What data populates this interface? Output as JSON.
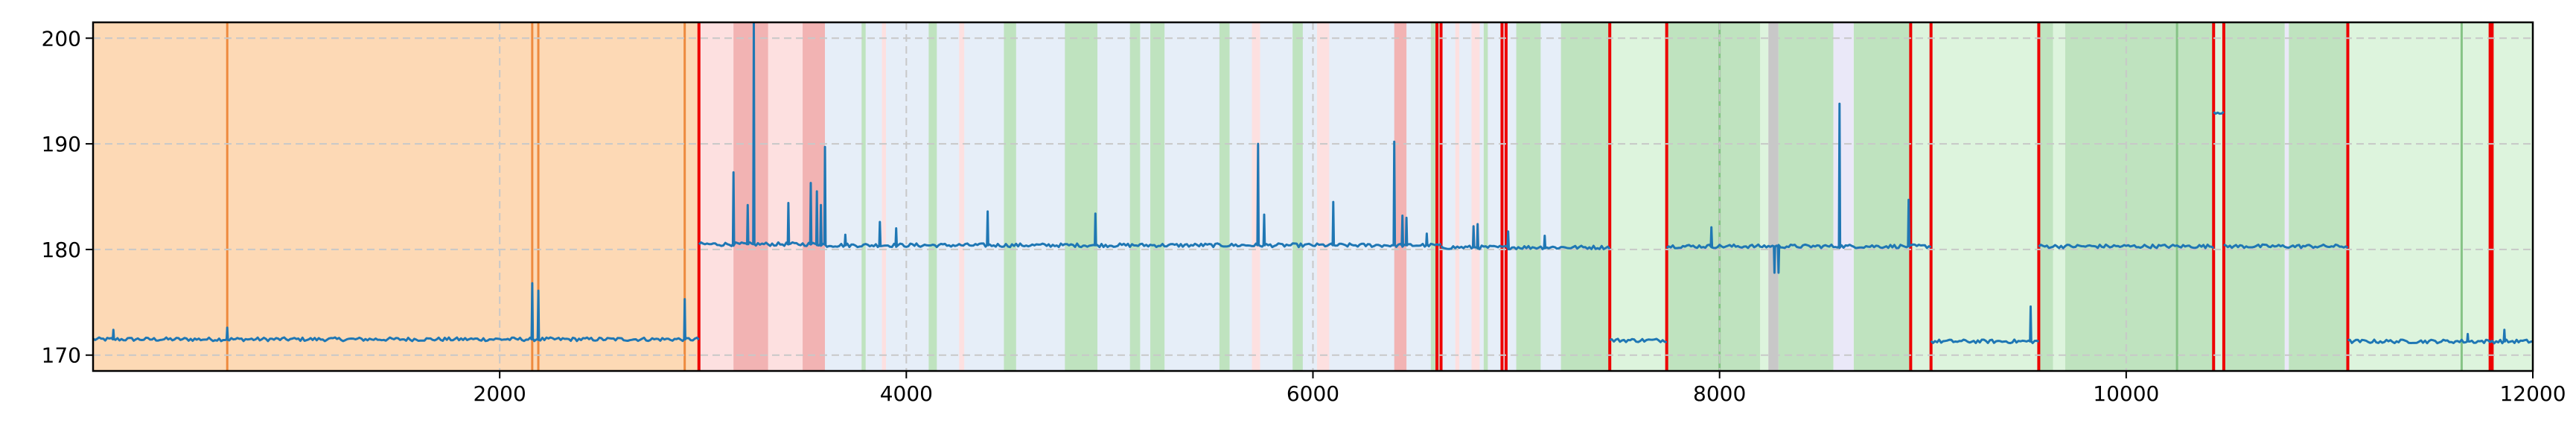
{
  "chart_data": {
    "type": "line",
    "title": "",
    "xlabel": "",
    "ylabel": "",
    "xlim": [
      0,
      12000
    ],
    "ylim": [
      168.5,
      201.5
    ],
    "grid": true,
    "legend": "none",
    "x_ticks": [
      {
        "value": 2000,
        "label": "2000"
      },
      {
        "value": 4000,
        "label": "4000"
      },
      {
        "value": 6000,
        "label": "6000"
      },
      {
        "value": 8000,
        "label": "8000"
      },
      {
        "value": 10000,
        "label": "10000"
      },
      {
        "value": 12000,
        "label": "12000"
      }
    ],
    "y_ticks": [
      {
        "value": 170,
        "label": "170"
      },
      {
        "value": 180,
        "label": "180"
      },
      {
        "value": 190,
        "label": "190"
      },
      {
        "value": 200,
        "label": "200"
      }
    ],
    "colors": {
      "line": "#1f77b4",
      "background_span": "#fdd9b5",
      "orange_marker": "#ee8a3e",
      "red_span": "#f2b3b3",
      "pink_span": "#fde0e0",
      "blue_span": "#e6eef8",
      "green_span": "#bfe3bf",
      "lightgreen_span": "#ddf4dd",
      "lavender_span": "#eae8f8",
      "gray_span": "#c8c8c8",
      "changepoint": "#ee0000",
      "green_marker": "#86c386",
      "grid": "#c8c8c8"
    },
    "spans": [
      {
        "x0": 0,
        "x1": 2980,
        "color": "background_span"
      },
      {
        "x0": 2980,
        "x1": 3600,
        "color": "pink_span"
      },
      {
        "x0": 3150,
        "x1": 3320,
        "color": "red_span"
      },
      {
        "x0": 3490,
        "x1": 3600,
        "color": "red_span"
      },
      {
        "x0": 3600,
        "x1": 7460,
        "color": "blue_span"
      },
      {
        "x0": 3780,
        "x1": 3800,
        "color": "green_span"
      },
      {
        "x0": 3880,
        "x1": 3900,
        "color": "pink_span"
      },
      {
        "x0": 4110,
        "x1": 4150,
        "color": "green_span"
      },
      {
        "x0": 4260,
        "x1": 4285,
        "color": "pink_span"
      },
      {
        "x0": 4480,
        "x1": 4540,
        "color": "green_span"
      },
      {
        "x0": 4780,
        "x1": 4940,
        "color": "green_span"
      },
      {
        "x0": 5100,
        "x1": 5150,
        "color": "green_span"
      },
      {
        "x0": 5200,
        "x1": 5270,
        "color": "green_span"
      },
      {
        "x0": 5540,
        "x1": 5590,
        "color": "green_span"
      },
      {
        "x0": 5700,
        "x1": 5740,
        "color": "pink_span"
      },
      {
        "x0": 5900,
        "x1": 5950,
        "color": "green_span"
      },
      {
        "x0": 6020,
        "x1": 6080,
        "color": "pink_span"
      },
      {
        "x0": 6400,
        "x1": 6460,
        "color": "red_span"
      },
      {
        "x0": 6580,
        "x1": 6620,
        "color": "green_span"
      },
      {
        "x0": 6700,
        "x1": 6720,
        "color": "pink_span"
      },
      {
        "x0": 6780,
        "x1": 6820,
        "color": "pink_span"
      },
      {
        "x0": 6840,
        "x1": 6860,
        "color": "green_span"
      },
      {
        "x0": 7000,
        "x1": 7120,
        "color": "green_span"
      },
      {
        "x0": 7220,
        "x1": 7460,
        "color": "green_span"
      },
      {
        "x0": 7460,
        "x1": 7740,
        "color": "lightgreen_span"
      },
      {
        "x0": 7740,
        "x1": 8200,
        "color": "green_span"
      },
      {
        "x0": 8200,
        "x1": 8240,
        "color": "lightgreen_span"
      },
      {
        "x0": 8240,
        "x1": 8290,
        "color": "gray_span"
      },
      {
        "x0": 8290,
        "x1": 8560,
        "color": "green_span"
      },
      {
        "x0": 8560,
        "x1": 8660,
        "color": "lavender_span"
      },
      {
        "x0": 8660,
        "x1": 8940,
        "color": "green_span"
      },
      {
        "x0": 8940,
        "x1": 9040,
        "color": "lightgreen_span"
      },
      {
        "x0": 9040,
        "x1": 9570,
        "color": "lightgreen_span"
      },
      {
        "x0": 9570,
        "x1": 9640,
        "color": "green_span"
      },
      {
        "x0": 9640,
        "x1": 9700,
        "color": "lightgreen_span"
      },
      {
        "x0": 9700,
        "x1": 10430,
        "color": "green_span"
      },
      {
        "x0": 10430,
        "x1": 10480,
        "color": "lightgreen_span"
      },
      {
        "x0": 10480,
        "x1": 10780,
        "color": "green_span"
      },
      {
        "x0": 10780,
        "x1": 10800,
        "color": "lavender_span"
      },
      {
        "x0": 10800,
        "x1": 11090,
        "color": "green_span"
      },
      {
        "x0": 11090,
        "x1": 12000,
        "color": "lightgreen_span"
      }
    ],
    "orange_markers": [
      660,
      2160,
      2190,
      2910
    ],
    "green_markers": [
      8000,
      10250,
      11650
    ],
    "changepoints": [
      2980,
      6610,
      6630,
      6930,
      6950,
      7460,
      7740,
      8940,
      9040,
      9570,
      10430,
      10480,
      11090,
      11790,
      11800
    ],
    "series": [
      {
        "name": "signal",
        "segments": [
          {
            "x0": 0,
            "x1": 2980,
            "level": 171.5,
            "spikes": [
              [
                100,
                172.4
              ],
              [
                660,
                172.6
              ],
              [
                2160,
                176.8
              ],
              [
                2190,
                176.1
              ],
              [
                2910,
                175.3
              ]
            ]
          },
          {
            "x0": 2980,
            "x1": 3600,
            "level": 180.5,
            "spikes": [
              [
                3150,
                187.3
              ],
              [
                3220,
                184.2
              ],
              [
                3250,
                201.5
              ],
              [
                3420,
                184.4
              ],
              [
                3530,
                186.3
              ],
              [
                3560,
                185.5
              ],
              [
                3580,
                184.2
              ],
              [
                3600,
                189.7
              ]
            ]
          },
          {
            "x0": 3600,
            "x1": 6630,
            "level": 180.4,
            "spikes": [
              [
                3700,
                181.4
              ],
              [
                3870,
                182.6
              ],
              [
                3950,
                182.0
              ],
              [
                4400,
                183.6
              ],
              [
                4930,
                183.4
              ],
              [
                5730,
                190.0
              ],
              [
                5760,
                183.3
              ],
              [
                6100,
                184.5
              ],
              [
                6400,
                190.2
              ],
              [
                6440,
                183.2
              ],
              [
                6460,
                183.0
              ],
              [
                6560,
                181.5
              ]
            ]
          },
          {
            "x0": 6630,
            "x1": 7460,
            "level": 180.2,
            "spikes": [
              [
                6790,
                182.2
              ],
              [
                6810,
                182.4
              ],
              [
                6960,
                181.7
              ],
              [
                7140,
                181.3
              ]
            ]
          },
          {
            "x0": 7460,
            "x1": 7740,
            "level": 171.4,
            "spikes": []
          },
          {
            "x0": 7740,
            "x1": 9040,
            "level": 180.3,
            "spikes": [
              [
                7960,
                182.1
              ],
              [
                8270,
                177.8
              ],
              [
                8290,
                177.8
              ],
              [
                8590,
                193.8
              ],
              [
                8930,
                184.7
              ]
            ]
          },
          {
            "x0": 9040,
            "x1": 9570,
            "level": 171.3,
            "spikes": [
              [
                9530,
                174.6
              ]
            ]
          },
          {
            "x0": 9570,
            "x1": 10430,
            "level": 180.3,
            "spikes": []
          },
          {
            "x0": 10430,
            "x1": 10480,
            "level": 193.0,
            "spikes": []
          },
          {
            "x0": 10480,
            "x1": 11090,
            "level": 180.3,
            "spikes": []
          },
          {
            "x0": 11090,
            "x1": 12000,
            "level": 171.3,
            "spikes": [
              [
                11680,
                172.0
              ],
              [
                11860,
                172.4
              ]
            ]
          }
        ]
      }
    ]
  }
}
